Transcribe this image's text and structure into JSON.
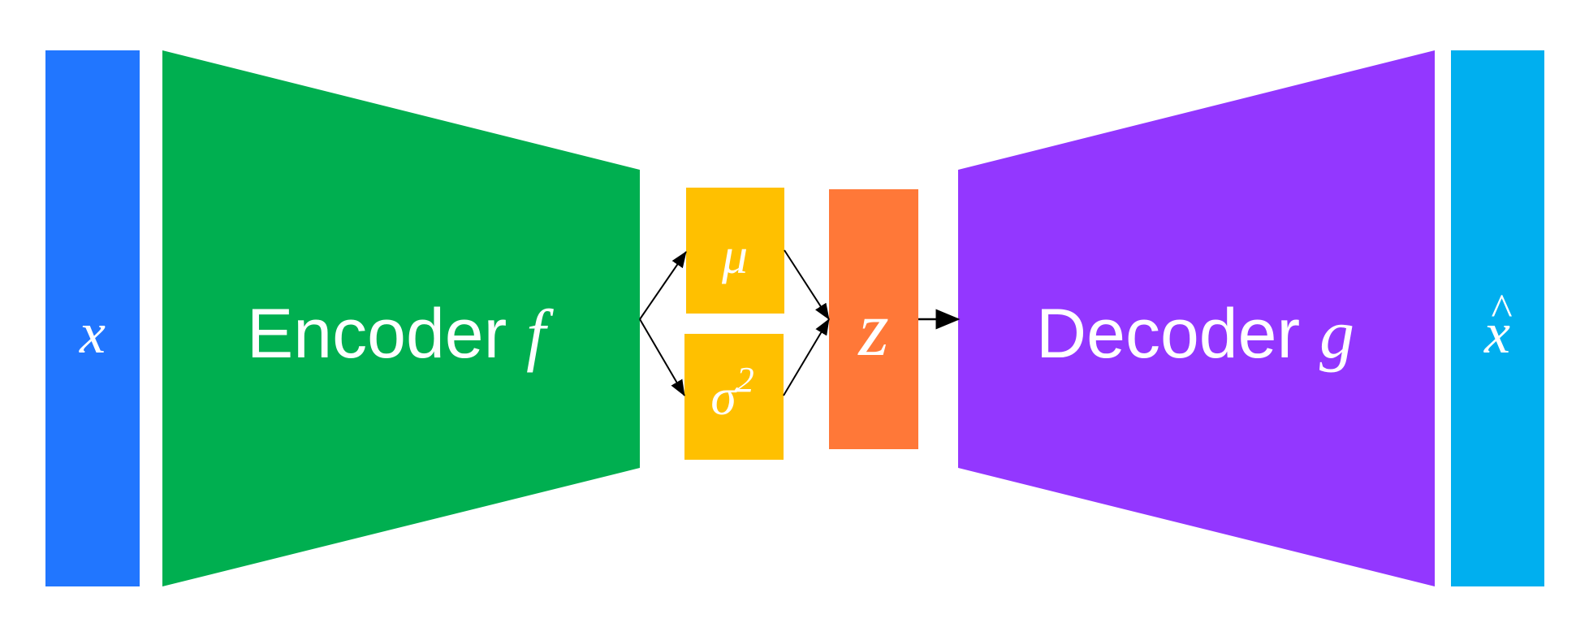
{
  "diagram": {
    "input": {
      "symbol": "x"
    },
    "encoder": {
      "word": "Encoder",
      "func": "f"
    },
    "mu": {
      "symbol": "μ"
    },
    "sigma": {
      "symbol": "σ",
      "exponent": "2"
    },
    "latent": {
      "symbol": "z"
    },
    "decoder": {
      "word": "Decoder",
      "func": "g"
    },
    "output": {
      "symbol": "x",
      "accent": "^"
    }
  },
  "colors": {
    "input": "#2176FF",
    "encoder": "#00AF50",
    "mu": "#FFC000",
    "sigma": "#FFC000",
    "latent": "#FF7838",
    "decoder": "#9337FF",
    "output": "#00AFEF",
    "arrow": "#000000",
    "text": "#FFFFFF"
  }
}
